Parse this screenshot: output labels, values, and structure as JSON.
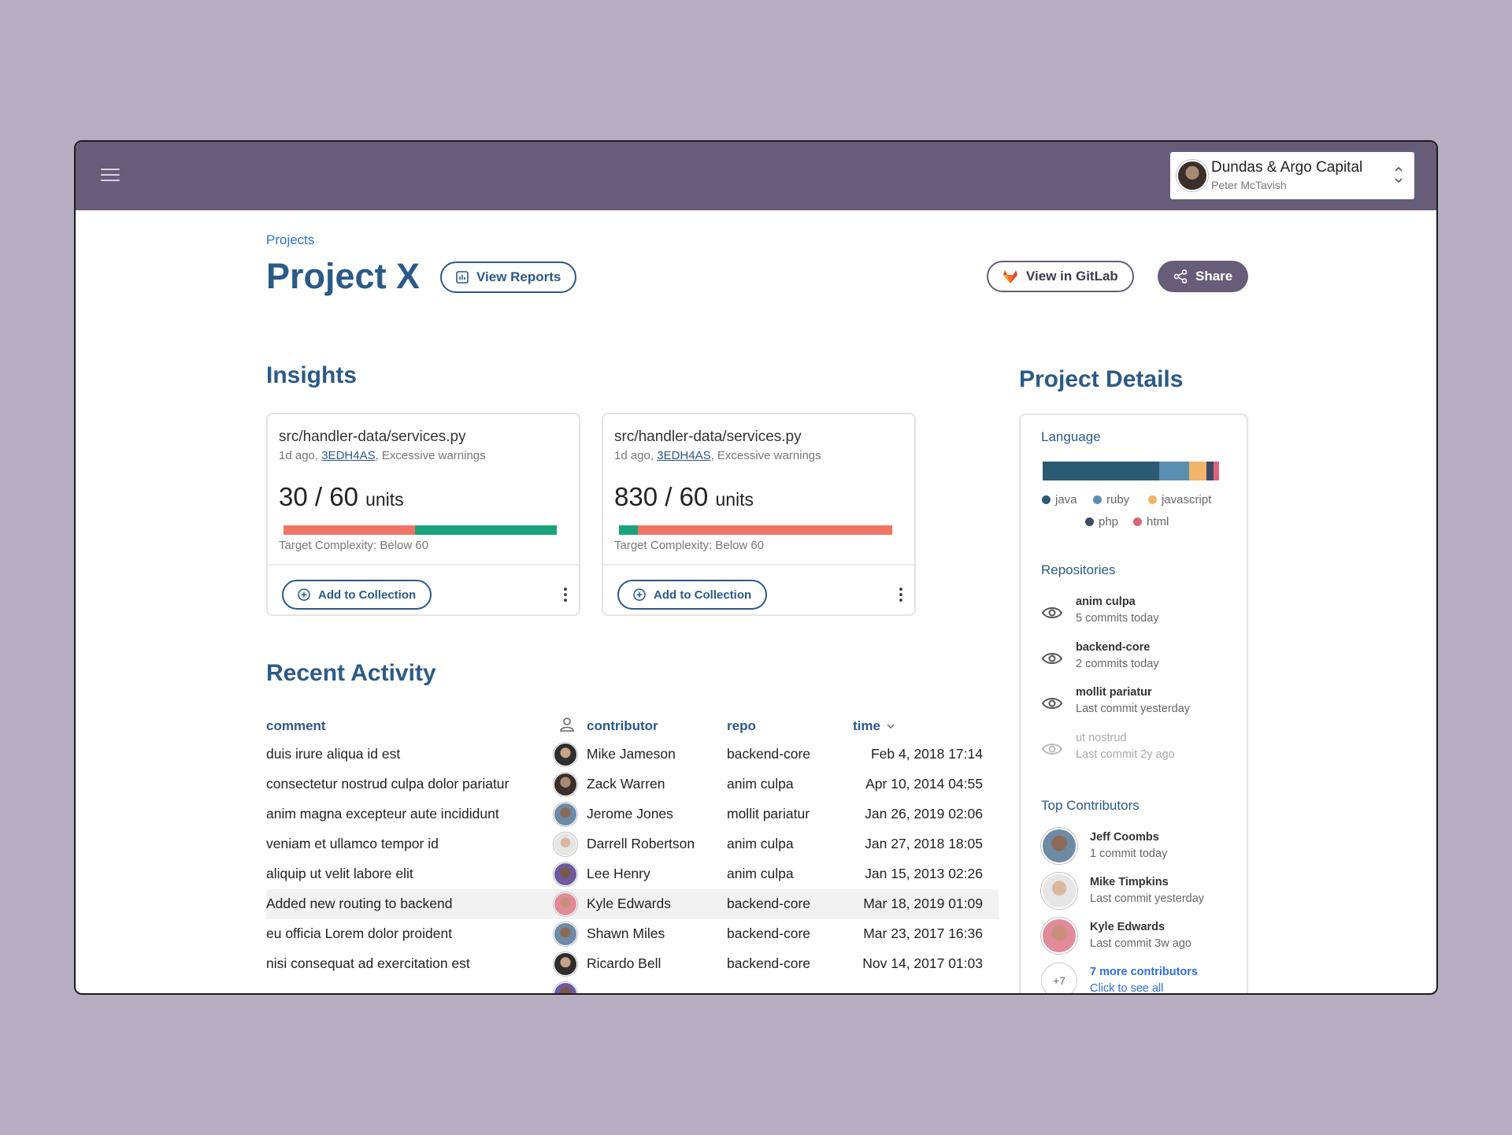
{
  "account": {
    "org": "Dundas & Argo Capital",
    "user": "Peter McTavish"
  },
  "breadcrumb": "Projects",
  "title": "Project X",
  "actions": {
    "view_reports": "View Reports",
    "view_gitlab": "View in GitLab",
    "share": "Share"
  },
  "insights": {
    "title": "Insights",
    "cards": [
      {
        "file": "src/handler-data/services.py",
        "meta_prefix": "1d ago, ",
        "hash": "3EDH4AS",
        "meta_suffix": ", Excessive warnings",
        "value": "30 / 60",
        "unit": "units",
        "target": "Target Complexity: Below 60",
        "collect_label": "Add to Collection",
        "bar": {
          "red_fraction": 0.48,
          "green_fraction": 0.52
        }
      },
      {
        "file": "src/handler-data/services.py",
        "meta_prefix": "1d ago, ",
        "hash": "3EDH4AS",
        "meta_suffix": ", Excessive warnings",
        "value": "830 / 60",
        "unit": "units",
        "target": "Target Complexity: Below 60",
        "collect_label": "Add to Collection",
        "bar": {
          "green_fraction": 0.07,
          "red_fraction": 0.93
        }
      }
    ]
  },
  "activity": {
    "title": "Recent Activity",
    "headers": {
      "comment": "comment",
      "contributor": "contributor",
      "repo": "repo",
      "time": "time"
    },
    "rows": [
      {
        "comment": "duis irure aliqua id est",
        "contributor": "Mike Jameson",
        "repo": "backend-core",
        "time": "Feb 4, 2018 17:14"
      },
      {
        "comment": "consectetur nostrud culpa dolor pariatur",
        "contributor": "Zack Warren",
        "repo": "anim culpa",
        "time": "Apr 10, 2014 04:55"
      },
      {
        "comment": "anim magna excepteur aute incididunt",
        "contributor": "Jerome Jones",
        "repo": "mollit pariatur",
        "time": "Jan 26, 2019 02:06"
      },
      {
        "comment": "veniam et ullamco tempor id",
        "contributor": "Darrell Robertson",
        "repo": "anim culpa",
        "time": "Jan 27, 2018 18:05"
      },
      {
        "comment": "aliquip ut velit labore elit",
        "contributor": "Lee Henry",
        "repo": "anim culpa",
        "time": "Jan 15, 2013 02:26"
      },
      {
        "comment": "Added new routing to backend",
        "contributor": "Kyle Edwards",
        "repo": "backend-core",
        "time": "Mar 18, 2019 01:09"
      },
      {
        "comment": "eu officia Lorem dolor proident",
        "contributor": "Shawn Miles",
        "repo": "backend-core",
        "time": "Mar 23, 2017 16:36"
      },
      {
        "comment": "nisi consequat ad exercitation est",
        "contributor": "Ricardo Bell",
        "repo": "backend-core",
        "time": "Nov 14, 2017 01:03"
      }
    ]
  },
  "details": {
    "title": "Project Details",
    "language_label": "Language",
    "languages": [
      {
        "name": "java",
        "color": "#2d5a73",
        "fraction": 0.66
      },
      {
        "name": "ruby",
        "color": "#5b8fb0",
        "fraction": 0.17
      },
      {
        "name": "javascript",
        "color": "#f0b46a",
        "fraction": 0.1
      },
      {
        "name": "php",
        "color": "#3f4a66",
        "fraction": 0.04
      },
      {
        "name": "html",
        "color": "#d9667a",
        "fraction": 0.03
      }
    ],
    "repositories_label": "Repositories",
    "repositories": [
      {
        "name": "anim culpa",
        "sub": "5 commits today"
      },
      {
        "name": "backend-core",
        "sub": "2 commits today"
      },
      {
        "name": "mollit pariatur",
        "sub": "Last commit yesterday"
      },
      {
        "name": "ut nostrud",
        "sub": "Last commit 2y ago"
      }
    ],
    "contributors_label": "Top Contributors",
    "contributors": [
      {
        "name": "Jeff Coombs",
        "sub": "1 commit today"
      },
      {
        "name": "Mike Timpkins",
        "sub": "Last commit yesterday"
      },
      {
        "name": "Kyle Edwards",
        "sub": "Last commit 3w ago"
      }
    ],
    "more": {
      "badge": "+7",
      "title": "7 more contributors",
      "sub": "Click to see all"
    }
  },
  "colors": {
    "accent": "#2b5a87",
    "topbar": "#675d78",
    "bar_red": "#f07565",
    "bar_green": "#1aa37a"
  }
}
